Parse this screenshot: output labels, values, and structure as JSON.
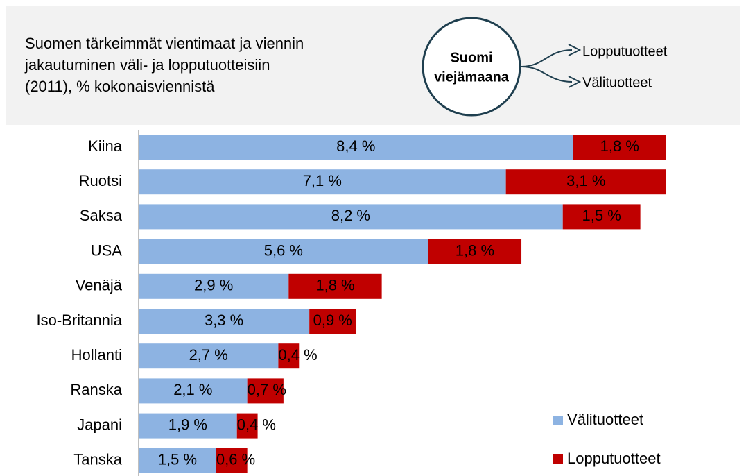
{
  "chart_data": {
    "type": "stacked_barh",
    "title_lines": [
      "Suomen tärkeimmät vientimaat ja viennin",
      "jakautuminen väli- ja lopputuotteisiin",
      "(2011), % kokonaisviennistä"
    ],
    "diagram": {
      "center_lines": [
        "Suomi",
        "viejämaana"
      ],
      "outputs": [
        "Lopputuotteet",
        "Välituotteet"
      ]
    },
    "categories": [
      "Kiina",
      "Ruotsi",
      "Saksa",
      "USA",
      "Venäjä",
      "Iso-Britannia",
      "Hollanti",
      "Ranska",
      "Japani",
      "Tanska"
    ],
    "series": [
      {
        "name": "Välituotteet",
        "color": "#8db3e2",
        "values": [
          8.4,
          7.1,
          8.2,
          5.6,
          2.9,
          3.3,
          2.7,
          2.1,
          1.9,
          1.5
        ],
        "value_labels": [
          "8,4 %",
          "7,1 %",
          "8,2 %",
          "5,6 %",
          "2,9 %",
          "3,3 %",
          "2,7 %",
          "2,1 %",
          "1,9 %",
          "1,5 %"
        ]
      },
      {
        "name": "Lopputuotteet",
        "color": "#c00000",
        "values": [
          1.8,
          3.1,
          1.5,
          1.8,
          1.8,
          0.9,
          0.4,
          0.7,
          0.4,
          0.6
        ],
        "value_labels": [
          "1,8 %",
          "3,1 %",
          "1,5 %",
          "1,8 %",
          "1,8 %",
          "0,9 %",
          "0,4 %",
          "0,7 %",
          "0,4 %",
          "0,6 %"
        ]
      }
    ]
  }
}
